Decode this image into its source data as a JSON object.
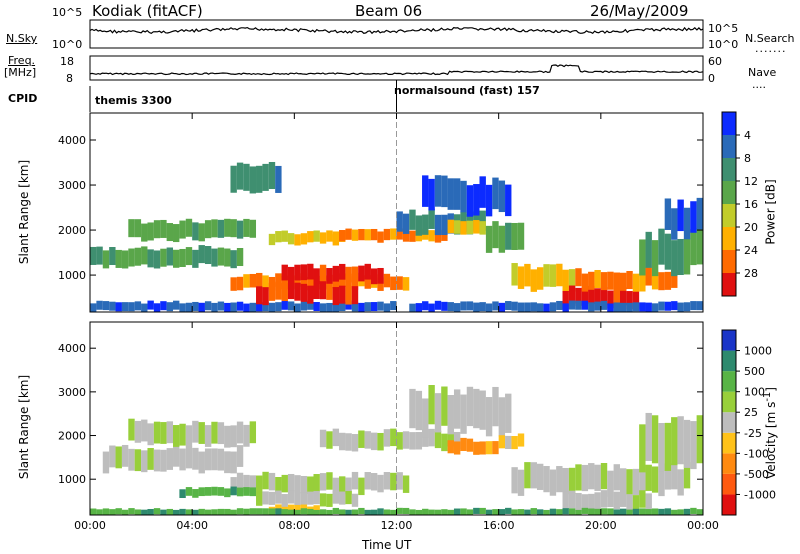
{
  "header": {
    "station": "Kodiak (fitACF)",
    "beam": "Beam 06",
    "date": "26/May/2009"
  },
  "status_panels": {
    "nsky_label": "N.Sky",
    "nsearch_label": "N.Search",
    "freq_label": "Freq.",
    "freq_unit": "[MHz]",
    "nave_label": "Nave",
    "cpid_label": "CPID",
    "left_ticks_noise": [
      "10^5",
      "10^0"
    ],
    "right_ticks_noise": [
      "10^5",
      "10^0"
    ],
    "left_ticks_freq": [
      "18",
      "8"
    ],
    "right_ticks_freq": [
      "60",
      "0"
    ],
    "cpid_segments": [
      {
        "name": "themis 3300",
        "start_hour": 0
      },
      {
        "name": "normalsound (fast) 157",
        "start_hour": 12
      }
    ]
  },
  "chart_data": [
    {
      "type": "heatmap",
      "title": "",
      "xlabel": "",
      "ylabel": "Slant Range [km]",
      "x_range_hours": [
        0,
        24
      ],
      "ylim": [
        180,
        4600
      ],
      "x_ticks": [
        "00:00",
        "04:00",
        "08:00",
        "12:00",
        "16:00",
        "20:00",
        "00:00"
      ],
      "y_ticks": [
        1000,
        2000,
        3000,
        4000
      ],
      "colorbar": {
        "label": "Power [dB]",
        "ticks": [
          "4",
          "8",
          "12",
          "16",
          "20",
          "24",
          "28"
        ],
        "colors": [
          "#0c2bff",
          "#2a6ab8",
          "#3f8f70",
          "#5aa64a",
          "#c2cc2a",
          "#ffb000",
          "#ff6a00",
          "#e01010"
        ]
      },
      "regions": [
        {
          "t0": 0.0,
          "t1": 6.0,
          "r0": 1200,
          "r1": 1600,
          "level": 3
        },
        {
          "t0": 1.5,
          "t1": 6.5,
          "r0": 1800,
          "r1": 2200,
          "level": 3
        },
        {
          "t0": 0.0,
          "t1": 12.0,
          "r0": 200,
          "r1": 400,
          "level": 1
        },
        {
          "t0": 5.5,
          "t1": 12.5,
          "r0": 700,
          "r1": 1000,
          "level": 6
        },
        {
          "t0": 6.5,
          "t1": 10.5,
          "r0": 400,
          "r1": 800,
          "level": 7
        },
        {
          "t0": 7.5,
          "t1": 11.5,
          "r0": 850,
          "r1": 1200,
          "level": 7
        },
        {
          "t0": 7.0,
          "t1": 10.0,
          "r0": 1700,
          "r1": 1950,
          "level": 5
        },
        {
          "t0": 9.5,
          "t1": 14.0,
          "r0": 1750,
          "r1": 2000,
          "level": 6
        },
        {
          "t0": 12.0,
          "t1": 15.5,
          "r0": 1950,
          "r1": 2400,
          "level": 2
        },
        {
          "t0": 13.0,
          "t1": 16.5,
          "r0": 2400,
          "r1": 3100,
          "level": 1
        },
        {
          "t0": 14.0,
          "t1": 15.5,
          "r0": 1900,
          "r1": 2200,
          "level": 5
        },
        {
          "t0": 15.5,
          "t1": 17.0,
          "r0": 1500,
          "r1": 2100,
          "level": 3
        },
        {
          "t0": 16.5,
          "t1": 19.0,
          "r0": 700,
          "r1": 1200,
          "level": 5
        },
        {
          "t0": 18.5,
          "t1": 21.5,
          "r0": 300,
          "r1": 700,
          "level": 7
        },
        {
          "t0": 19.0,
          "t1": 23.0,
          "r0": 700,
          "r1": 1100,
          "level": 6
        },
        {
          "t0": 21.5,
          "t1": 24.0,
          "r0": 1100,
          "r1": 1900,
          "level": 3
        },
        {
          "t0": 22.5,
          "t1": 24.0,
          "r0": 1900,
          "r1": 2600,
          "level": 1
        },
        {
          "t0": 12.5,
          "t1": 24.0,
          "r0": 200,
          "r1": 400,
          "level": 1
        },
        {
          "t0": 5.5,
          "t1": 7.5,
          "r0": 2900,
          "r1": 3500,
          "level": 2
        }
      ]
    },
    {
      "type": "heatmap",
      "title": "",
      "xlabel": "Time UT",
      "ylabel": "Slant Range [km]",
      "x_range_hours": [
        0,
        24
      ],
      "ylim": [
        180,
        4600
      ],
      "x_ticks": [
        "00:00",
        "04:00",
        "08:00",
        "12:00",
        "16:00",
        "20:00",
        "00:00"
      ],
      "y_ticks": [
        1000,
        2000,
        3000,
        4000
      ],
      "colorbar": {
        "label": "Velocity [m s^-1]",
        "ticks": [
          "1000",
          "500",
          "100",
          "25",
          "-25",
          "-100",
          "-500",
          "-1000"
        ],
        "colors": [
          "#1a35c8",
          "#2e8a6e",
          "#58b446",
          "#98cf3a",
          "#bdbdbd",
          "#ffc21a",
          "#ff8a10",
          "#ff5a10",
          "#e01010"
        ]
      },
      "regions": [
        {
          "t0": 0.5,
          "t1": 6.0,
          "r0": 1200,
          "r1": 1700,
          "level": 4
        },
        {
          "t0": 1.5,
          "t1": 6.5,
          "r0": 1800,
          "r1": 2300,
          "level": 4
        },
        {
          "t0": 5.5,
          "t1": 12.5,
          "r0": 700,
          "r1": 1100,
          "level": 4
        },
        {
          "t0": 6.5,
          "t1": 10.5,
          "r0": 400,
          "r1": 700,
          "level": 4
        },
        {
          "t0": 7.0,
          "t1": 9.0,
          "r0": 200,
          "r1": 400,
          "level": 5
        },
        {
          "t0": 9.0,
          "t1": 14.5,
          "r0": 1700,
          "r1": 2100,
          "level": 4
        },
        {
          "t0": 12.5,
          "t1": 16.5,
          "r0": 2100,
          "r1": 3000,
          "level": 4
        },
        {
          "t0": 14.0,
          "t1": 16.0,
          "r0": 1600,
          "r1": 1900,
          "level": 6
        },
        {
          "t0": 16.5,
          "t1": 23.5,
          "r0": 700,
          "r1": 1300,
          "level": 4
        },
        {
          "t0": 18.5,
          "t1": 22.0,
          "r0": 300,
          "r1": 700,
          "level": 4
        },
        {
          "t0": 21.5,
          "t1": 24.0,
          "r0": 1300,
          "r1": 2400,
          "level": 4
        },
        {
          "t0": 0.0,
          "t1": 24.0,
          "r0": 180,
          "r1": 320,
          "level": 2
        },
        {
          "t0": 3.5,
          "t1": 6.5,
          "r0": 600,
          "r1": 800,
          "level": 2
        },
        {
          "t0": 16.0,
          "t1": 17.0,
          "r0": 1700,
          "r1": 2000,
          "level": 5
        }
      ]
    }
  ]
}
